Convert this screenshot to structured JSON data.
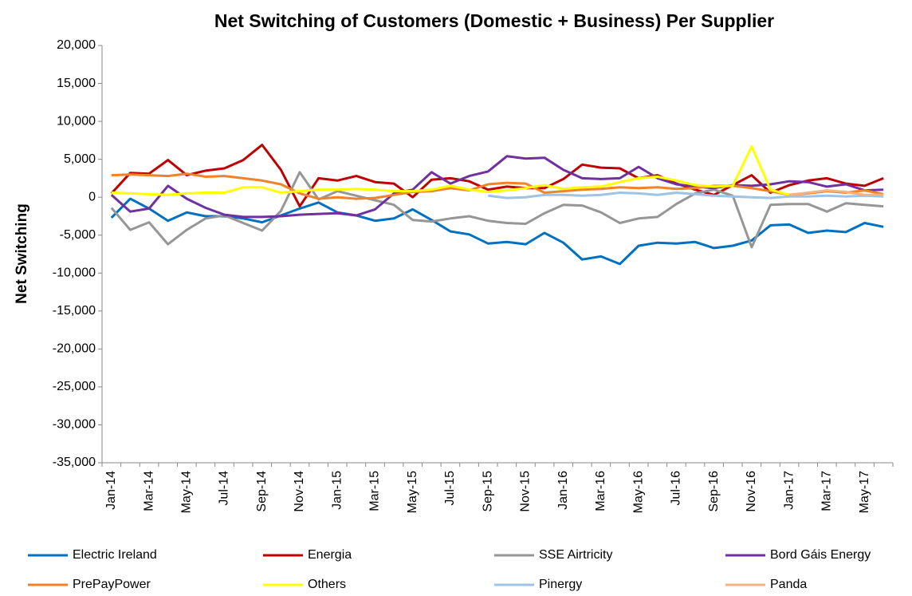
{
  "chart_data": {
    "type": "line",
    "title": "Net Switching of Customers (Domestic + Business) Per Supplier",
    "y_label": "Net Switching",
    "categories": [
      "Jan-14",
      null,
      "Mar-14",
      null,
      "May-14",
      null,
      "Jul-14",
      null,
      "Sep-14",
      null,
      "Nov-14",
      null,
      "Jan-15",
      null,
      "Mar-15",
      null,
      "May-15",
      null,
      "Jul-15",
      null,
      "Sep-15",
      null,
      "Nov-15",
      null,
      "Jan-16",
      null,
      "Mar-16",
      null,
      "May-16",
      null,
      "Jul-16",
      null,
      "Sep-16",
      null,
      "Nov-16",
      null,
      "Jan-17",
      null,
      "Mar-17",
      null,
      "May-17",
      null
    ],
    "ylim": [
      -35000,
      20000
    ],
    "yticks": [
      {
        "value": 20000,
        "label": "20,000"
      },
      {
        "value": 15000,
        "label": "15,000"
      },
      {
        "value": 10000,
        "label": "10,000"
      },
      {
        "value": 5000,
        "label": "5,000"
      },
      0,
      {
        "value": -5000,
        "label": "-5,000"
      },
      {
        "value": -10000,
        "label": "-10,000"
      },
      {
        "value": -15000,
        "label": "-15,000"
      },
      {
        "value": -20000,
        "label": "-20,000"
      },
      {
        "value": -25000,
        "label": "-25,000"
      },
      {
        "value": -30000,
        "label": "-30,000"
      },
      {
        "value": -35000,
        "label": "-35,000"
      }
    ],
    "grid": false,
    "legend": "bottom",
    "series": [
      {
        "name": "Electric Ireland",
        "color": "#0070c0",
        "values": [
          -2700,
          -200,
          -1500,
          -3100,
          -2000,
          -2500,
          -2500,
          -2800,
          -3300,
          -2400,
          -1500,
          -700,
          -2000,
          -2400,
          -3100,
          -2800,
          -1600,
          -3000,
          -4500,
          -4900,
          -6100,
          -5900,
          -6200,
          -4700,
          -6000,
          -8200,
          -7800,
          -8800,
          -6400,
          -6000,
          -6100,
          -5900,
          -6700,
          -6400,
          -5700,
          -3700,
          -3600,
          -4700,
          -4400,
          -4600,
          -3400,
          -3900
        ]
      },
      {
        "name": "Energia",
        "color": "#c00000",
        "values": [
          500,
          3200,
          3100,
          4900,
          2900,
          3500,
          3800,
          4900,
          6900,
          3600,
          -1200,
          2500,
          2200,
          2800,
          2000,
          1800,
          0,
          2300,
          2500,
          2100,
          1000,
          1400,
          1200,
          1200,
          2400,
          4300,
          3900,
          3800,
          2500,
          2900,
          1800,
          1000,
          300,
          1600,
          2900,
          600,
          1600,
          2200,
          2500,
          1800,
          1500,
          2500
        ]
      },
      {
        "name": "SSE Airtricity",
        "color": "#969696",
        "values": [
          -1400,
          -4300,
          -3300,
          -6200,
          -4300,
          -2800,
          -2400,
          -3400,
          -4400,
          -1800,
          3300,
          -300,
          800,
          200,
          -400,
          -1000,
          -3000,
          -3200,
          -2800,
          -2500,
          -3100,
          -3400,
          -3500,
          -2100,
          -1000,
          -1100,
          -2000,
          -3400,
          -2800,
          -2600,
          -900,
          500,
          1000,
          200,
          -6600,
          -1000,
          -900,
          -900,
          -1900,
          -800,
          -1000,
          -1200
        ]
      },
      {
        "name": "Bord Gáis Energy",
        "color": "#7030a0",
        "values": [
          300,
          -1900,
          -1500,
          1500,
          -200,
          -1400,
          -2300,
          -2600,
          -2600,
          -2500,
          -2300,
          -2200,
          -2100,
          -2400,
          -1600,
          500,
          1000,
          3300,
          1800,
          2800,
          3400,
          5400,
          5100,
          5200,
          3600,
          2500,
          2400,
          2500,
          4000,
          2500,
          1700,
          1400,
          1200,
          1600,
          1500,
          1700,
          2100,
          2000,
          1400,
          1700,
          900,
          1000
        ]
      },
      {
        "name": "PrePayPower",
        "color": "#f0822a",
        "values": [
          2900,
          3000,
          2900,
          2800,
          3100,
          2700,
          2800,
          2500,
          2200,
          1700,
          500,
          -200,
          0,
          -200,
          -100,
          300,
          700,
          800,
          1200,
          900,
          1700,
          1900,
          1800,
          600,
          800,
          1000,
          1100,
          1300,
          1200,
          1300,
          1100,
          1200,
          1500,
          1500,
          1200,
          800,
          300,
          500,
          800,
          600,
          900,
          400
        ]
      },
      {
        "name": "Others",
        "color": "#ffff00",
        "values": [
          600,
          500,
          400,
          300,
          500,
          600,
          600,
          1300,
          1300,
          600,
          800,
          1000,
          1000,
          1100,
          1000,
          800,
          800,
          1000,
          1500,
          1000,
          700,
          900,
          1200,
          1600,
          1100,
          1300,
          1400,
          2000,
          2500,
          2700,
          2200,
          1600,
          1400,
          1500,
          6700,
          1000,
          300,
          null,
          null,
          null,
          null,
          null
        ]
      },
      {
        "name": "Pinergy",
        "color": "#9dc3e6",
        "values": [
          null,
          null,
          null,
          null,
          null,
          null,
          null,
          null,
          null,
          null,
          null,
          null,
          null,
          null,
          null,
          null,
          null,
          null,
          null,
          null,
          200,
          -100,
          0,
          300,
          300,
          200,
          300,
          600,
          500,
          300,
          600,
          400,
          200,
          100,
          0,
          -100,
          100,
          100,
          200,
          100,
          200,
          100
        ]
      },
      {
        "name": "Panda",
        "color": "#f4b183",
        "values": [
          null,
          null,
          null,
          null,
          null,
          null,
          null,
          null,
          null,
          null,
          null,
          null,
          null,
          null,
          null,
          null,
          null,
          null,
          null,
          null,
          null,
          null,
          null,
          null,
          null,
          null,
          null,
          null,
          null,
          null,
          null,
          null,
          null,
          null,
          null,
          null,
          300,
          600,
          900,
          700,
          300,
          300
        ]
      }
    ]
  }
}
